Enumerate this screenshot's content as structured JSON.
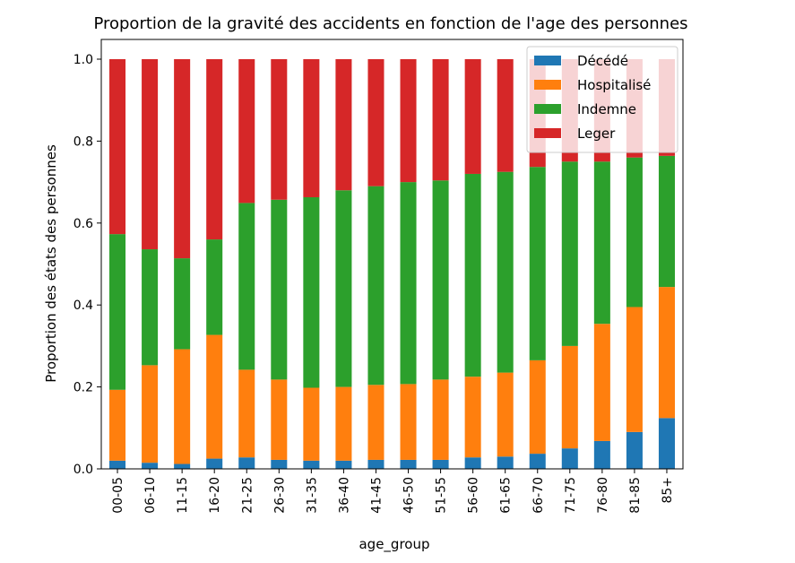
{
  "chart_data": {
    "type": "bar",
    "stacked": true,
    "title": "Proportion de la gravité des accidents en fonction de l'age des personnes",
    "xlabel": "age_group",
    "ylabel": "Proportion des états des personnes",
    "ylim": [
      0,
      1
    ],
    "yticks": [
      "0.0",
      "0.2",
      "0.4",
      "0.6",
      "0.8",
      "1.0"
    ],
    "legend_position": "top-right",
    "categories": [
      "00-05",
      "06-10",
      "11-15",
      "16-20",
      "21-25",
      "26-30",
      "31-35",
      "36-40",
      "41-45",
      "46-50",
      "51-55",
      "56-60",
      "61-65",
      "66-70",
      "71-75",
      "76-80",
      "81-85",
      "85+"
    ],
    "series": [
      {
        "name": "Décédé",
        "color": "#1f77b4",
        "values": [
          0.02,
          0.015,
          0.012,
          0.025,
          0.028,
          0.022,
          0.02,
          0.02,
          0.022,
          0.022,
          0.022,
          0.028,
          0.03,
          0.037,
          0.05,
          0.068,
          0.09,
          0.124
        ]
      },
      {
        "name": "Hospitalisé",
        "color": "#ff7f0e",
        "values": [
          0.173,
          0.238,
          0.28,
          0.302,
          0.214,
          0.196,
          0.178,
          0.18,
          0.183,
          0.185,
          0.196,
          0.197,
          0.205,
          0.228,
          0.25,
          0.286,
          0.305,
          0.32
        ]
      },
      {
        "name": "Indemne",
        "color": "#2ca02c",
        "values": [
          0.38,
          0.283,
          0.222,
          0.233,
          0.407,
          0.439,
          0.465,
          0.48,
          0.485,
          0.493,
          0.486,
          0.495,
          0.49,
          0.472,
          0.45,
          0.396,
          0.365,
          0.32
        ]
      },
      {
        "name": "Leger",
        "color": "#d62728",
        "values": [
          0.427,
          0.464,
          0.486,
          0.44,
          0.351,
          0.343,
          0.337,
          0.32,
          0.31,
          0.3,
          0.296,
          0.28,
          0.275,
          0.263,
          0.25,
          0.25,
          0.24,
          0.236
        ]
      }
    ]
  }
}
